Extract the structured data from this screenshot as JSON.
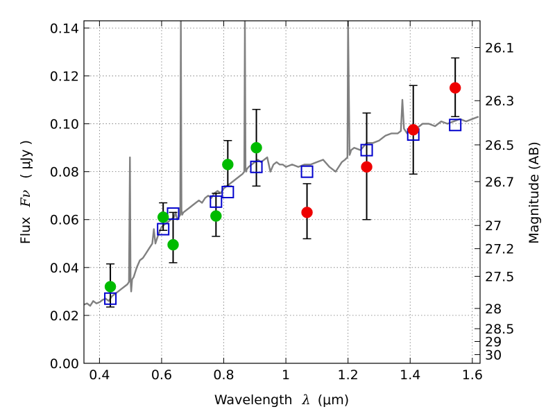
{
  "chart_data": {
    "type": "scatter",
    "xlabel_main": "Wavelength",
    "xlabel_symbol": "λ",
    "xlabel_unit": "(μm)",
    "ylabel_main": "Flux",
    "ylabel_symbol": "Fν",
    "ylabel_unit": "( μJy )",
    "y2label": "Magnitude (AB)",
    "xlim": [
      0.35,
      1.625
    ],
    "ylim": [
      0.0,
      0.143
    ],
    "xticks": [
      {
        "value": 0.4,
        "label": "0.4"
      },
      {
        "value": 0.6,
        "label": "0.6"
      },
      {
        "value": 0.8,
        "label": "0.8"
      },
      {
        "value": 1.0,
        "label": "1"
      },
      {
        "value": 1.2,
        "label": "1.2"
      },
      {
        "value": 1.4,
        "label": "1.4"
      },
      {
        "value": 1.6,
        "label": "1.6"
      }
    ],
    "yticks": [
      {
        "value": 0.0,
        "label": "0.00"
      },
      {
        "value": 0.02,
        "label": "0.02"
      },
      {
        "value": 0.04,
        "label": "0.04"
      },
      {
        "value": 0.06,
        "label": "0.06"
      },
      {
        "value": 0.08,
        "label": "0.08"
      },
      {
        "value": 0.1,
        "label": "0.10"
      },
      {
        "value": 0.12,
        "label": "0.12"
      },
      {
        "value": 0.14,
        "label": "0.14"
      }
    ],
    "y2ticks": [
      {
        "value": 26.1,
        "label": "26.1"
      },
      {
        "value": 26.3,
        "label": "26.3"
      },
      {
        "value": 26.5,
        "label": "26.5"
      },
      {
        "value": 26.7,
        "label": "26.7"
      },
      {
        "value": 27.0,
        "label": "27"
      },
      {
        "value": 27.2,
        "label": "27.2"
      },
      {
        "value": 27.5,
        "label": "27.5"
      },
      {
        "value": 28.0,
        "label": "28"
      },
      {
        "value": 28.5,
        "label": "28.5"
      },
      {
        "value": 29.0,
        "label": "29"
      },
      {
        "value": 30.0,
        "label": "30"
      }
    ],
    "grid": true,
    "colors": {
      "model_spectrum": "#808080",
      "model_photometry": "#0000cc",
      "optical_points": "#00bb00",
      "nir_points": "#ee0000",
      "error_bars": "#000000"
    },
    "series": [
      {
        "kind": "line",
        "color": "#808080",
        "x": [
          0.35,
          0.36,
          0.37,
          0.38,
          0.39,
          0.4,
          0.41,
          0.42,
          0.43,
          0.44,
          0.45,
          0.46,
          0.47,
          0.48,
          0.49,
          0.495,
          0.498,
          0.5,
          0.502,
          0.505,
          0.51,
          0.52,
          0.53,
          0.54,
          0.55,
          0.56,
          0.57,
          0.575,
          0.58,
          0.59,
          0.6,
          0.61,
          0.62,
          0.63,
          0.64,
          0.645,
          0.65,
          0.655,
          0.66,
          0.662,
          0.664,
          0.666,
          0.67,
          0.68,
          0.69,
          0.7,
          0.71,
          0.72,
          0.73,
          0.74,
          0.75,
          0.76,
          0.77,
          0.78,
          0.79,
          0.8,
          0.81,
          0.82,
          0.83,
          0.84,
          0.85,
          0.86,
          0.866,
          0.868,
          0.87,
          0.872,
          0.874,
          0.88,
          0.89,
          0.9,
          0.91,
          0.92,
          0.93,
          0.94,
          0.95,
          0.96,
          0.97,
          0.98,
          0.99,
          1.0,
          1.02,
          1.04,
          1.06,
          1.08,
          1.1,
          1.12,
          1.14,
          1.16,
          1.18,
          1.19,
          1.198,
          1.2,
          1.205,
          1.208,
          1.21,
          1.22,
          1.24,
          1.26,
          1.28,
          1.3,
          1.32,
          1.34,
          1.36,
          1.37,
          1.375,
          1.38,
          1.39,
          1.4,
          1.42,
          1.44,
          1.46,
          1.48,
          1.5,
          1.52,
          1.54,
          1.56,
          1.58,
          1.6,
          1.62
        ],
        "y": [
          0.0245,
          0.025,
          0.024,
          0.026,
          0.025,
          0.0255,
          0.0265,
          0.027,
          0.026,
          0.028,
          0.029,
          0.03,
          0.031,
          0.032,
          0.033,
          0.034,
          0.086,
          0.035,
          0.03,
          0.035,
          0.036,
          0.04,
          0.043,
          0.044,
          0.046,
          0.048,
          0.05,
          0.056,
          0.05,
          0.054,
          0.057,
          0.058,
          0.059,
          0.06,
          0.061,
          0.063,
          0.06,
          0.061,
          0.062,
          0.143,
          0.064,
          0.062,
          0.063,
          0.064,
          0.065,
          0.066,
          0.067,
          0.068,
          0.067,
          0.069,
          0.07,
          0.069,
          0.071,
          0.072,
          0.071,
          0.073,
          0.074,
          0.075,
          0.076,
          0.077,
          0.078,
          0.079,
          0.08,
          0.143,
          0.082,
          0.08,
          0.081,
          0.082,
          0.083,
          0.084,
          0.085,
          0.084,
          0.085,
          0.086,
          0.08,
          0.083,
          0.084,
          0.083,
          0.083,
          0.082,
          0.083,
          0.082,
          0.083,
          0.083,
          0.084,
          0.085,
          0.082,
          0.08,
          0.084,
          0.085,
          0.086,
          0.143,
          0.087,
          0.088,
          0.089,
          0.09,
          0.089,
          0.092,
          0.092,
          0.093,
          0.095,
          0.096,
          0.096,
          0.097,
          0.11,
          0.098,
          0.096,
          0.099,
          0.098,
          0.1,
          0.1,
          0.099,
          0.101,
          0.1,
          0.101,
          0.102,
          0.101,
          0.102,
          0.103
        ]
      },
      {
        "kind": "squares",
        "color": "#0000cc",
        "x": [
          0.435,
          0.605,
          0.637,
          0.775,
          0.813,
          0.905,
          1.068,
          1.26,
          1.41,
          1.545
        ],
        "y": [
          0.027,
          0.056,
          0.0625,
          0.0675,
          0.0715,
          0.082,
          0.08,
          0.089,
          0.0955,
          0.0995
        ]
      },
      {
        "kind": "points",
        "color": "#00bb00",
        "x": [
          0.435,
          0.605,
          0.637,
          0.775,
          0.813,
          0.905
        ],
        "y": [
          0.032,
          0.061,
          0.0495,
          0.0615,
          0.083,
          0.09
        ],
        "err_low": [
          0.0235,
          0.0555,
          0.042,
          0.053,
          0.074,
          0.074
        ],
        "err_high": [
          0.0415,
          0.067,
          0.063,
          0.071,
          0.093,
          0.106
        ]
      },
      {
        "kind": "points",
        "color": "#ee0000",
        "x": [
          1.068,
          1.26,
          1.41,
          1.545
        ],
        "y": [
          0.063,
          0.082,
          0.0975,
          0.115
        ],
        "err_low": [
          0.052,
          0.06,
          0.079,
          0.103
        ],
        "err_high": [
          0.075,
          0.1045,
          0.116,
          0.1275
        ]
      }
    ]
  }
}
